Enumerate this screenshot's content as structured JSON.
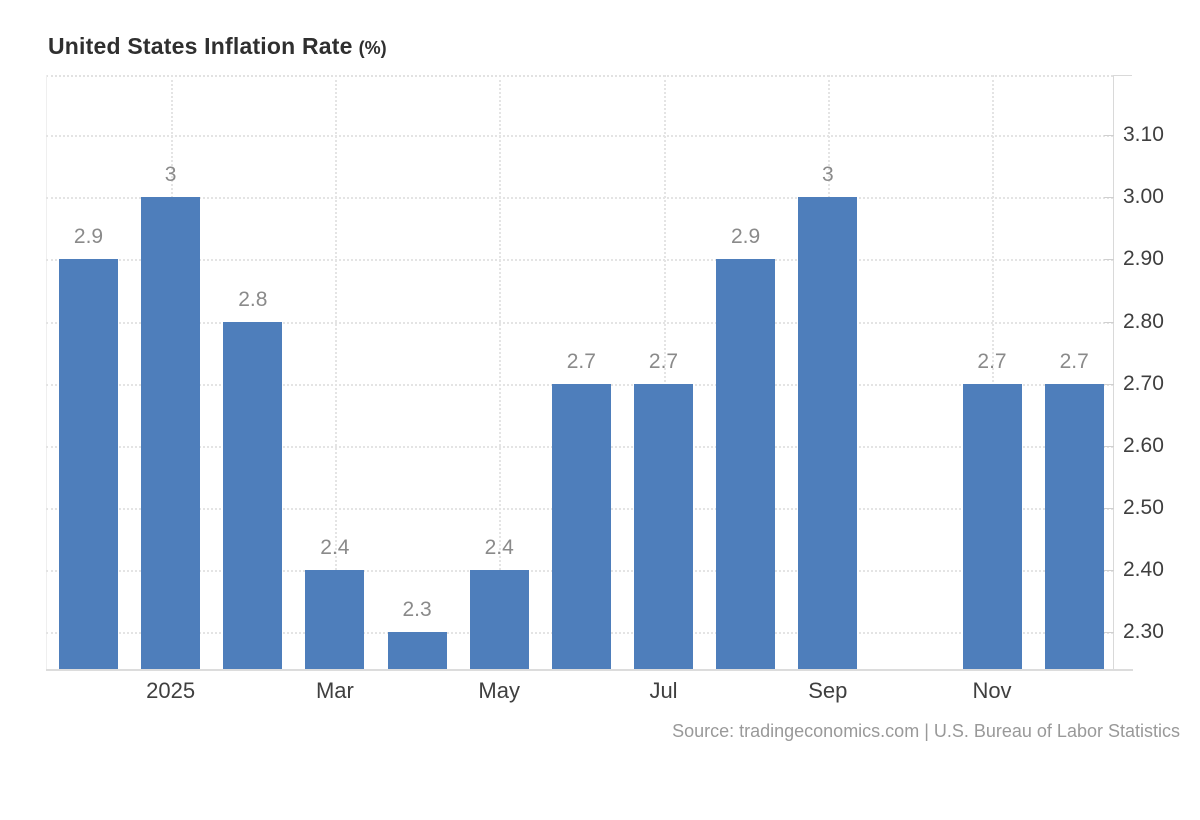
{
  "title": {
    "main": "United States Inflation Rate",
    "unit": "(%)"
  },
  "source": "Source: tradingeconomics.com | U.S. Bureau of Labor Statistics",
  "colors": {
    "bar": "#4e7ebb",
    "grid": "#e4e4e4",
    "axis_line": "#d9d9d9",
    "axis_text": "#3f3f3f",
    "value_label": "#8a8a8a",
    "title_text": "#2f2f2f",
    "source_text": "#999999"
  },
  "chart_data": {
    "type": "bar",
    "title": "United States Inflation Rate (%)",
    "values": [
      2.9,
      3,
      2.8,
      2.4,
      2.3,
      2.4,
      2.7,
      2.7,
      2.9,
      3,
      null,
      2.7,
      2.7
    ],
    "bar_labels": [
      "2.9",
      "3",
      "2.8",
      "2.4",
      "2.3",
      "2.4",
      "2.7",
      "2.7",
      "2.9",
      "3",
      "",
      "2.7",
      "2.7"
    ],
    "x_tick_labels": [
      "2025",
      "Mar",
      "May",
      "Jul",
      "Sep",
      "Nov"
    ],
    "x_tick_slots": [
      1,
      3,
      5,
      7,
      9,
      11
    ],
    "y_tick_labels": [
      "3.10",
      "3.00",
      "2.90",
      "2.80",
      "2.70",
      "2.60",
      "2.50",
      "2.40",
      "2.30"
    ],
    "ylim": [
      2.24,
      3.2
    ],
    "grid": "dotted",
    "legend": "none",
    "missing_slot_note": ""
  }
}
